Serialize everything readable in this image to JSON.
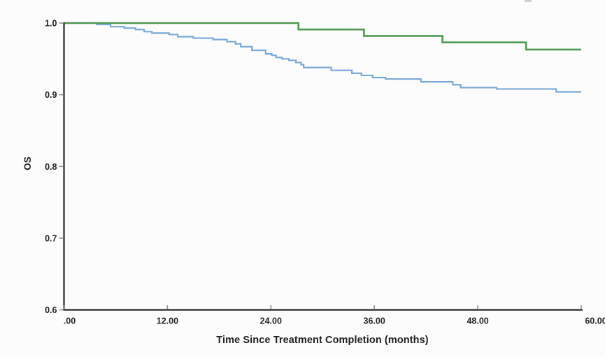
{
  "chart_data": {
    "type": "line",
    "subtype": "kaplan-meier-step",
    "title": "",
    "xlabel": "Time Since Treatment Completion (months)",
    "ylabel": "OS",
    "xlim": [
      0,
      60
    ],
    "ylim": [
      0.6,
      1.0
    ],
    "grid": false,
    "legend": "none",
    "axis_color": "#3a3a3a",
    "tick_mark_color": "#8f8f8f",
    "tick_text_color": "#242424",
    "x_ticks": {
      "values": [
        0,
        12,
        24,
        36,
        48,
        60
      ],
      "labels": [
        ".00",
        "12.00",
        "24.00",
        "36.00",
        "48.00",
        "60.00"
      ]
    },
    "y_ticks": {
      "values": [
        1.0,
        0.9,
        0.8,
        0.7,
        0.6
      ],
      "labels": [
        "1.0",
        "0.9",
        "0.8",
        "0.7",
        "0.6"
      ]
    },
    "series": [
      {
        "name": "blue",
        "color": "#7aa9d8",
        "stroke_width": 2.2,
        "end_time": 60,
        "step_points": [
          [
            0.0,
            1.0
          ],
          [
            3.8,
            0.998
          ],
          [
            5.4,
            0.995
          ],
          [
            7.0,
            0.993
          ],
          [
            8.3,
            0.991
          ],
          [
            9.3,
            0.988
          ],
          [
            10.2,
            0.986
          ],
          [
            12.2,
            0.984
          ],
          [
            13.2,
            0.981
          ],
          [
            15.0,
            0.979
          ],
          [
            17.3,
            0.977
          ],
          [
            18.9,
            0.974
          ],
          [
            19.9,
            0.971
          ],
          [
            20.5,
            0.967
          ],
          [
            21.8,
            0.962
          ],
          [
            23.4,
            0.957
          ],
          [
            24.1,
            0.955
          ],
          [
            24.6,
            0.952
          ],
          [
            25.3,
            0.95
          ],
          [
            26.1,
            0.948
          ],
          [
            26.9,
            0.945
          ],
          [
            27.5,
            0.942
          ],
          [
            27.8,
            0.938
          ],
          [
            31.0,
            0.934
          ],
          [
            33.4,
            0.93
          ],
          [
            34.5,
            0.927
          ],
          [
            35.8,
            0.924
          ],
          [
            37.3,
            0.922
          ],
          [
            41.4,
            0.918
          ],
          [
            45.1,
            0.914
          ],
          [
            46.0,
            0.91
          ],
          [
            50.2,
            0.908
          ],
          [
            57.1,
            0.904
          ]
        ]
      },
      {
        "name": "green",
        "color": "#4d9950",
        "stroke_width": 2.6,
        "end_time": 60,
        "step_points": [
          [
            0.0,
            1.0
          ],
          [
            27.2,
            0.991
          ],
          [
            34.8,
            0.982
          ],
          [
            43.9,
            0.973
          ],
          [
            53.6,
            0.963
          ]
        ]
      }
    ]
  }
}
